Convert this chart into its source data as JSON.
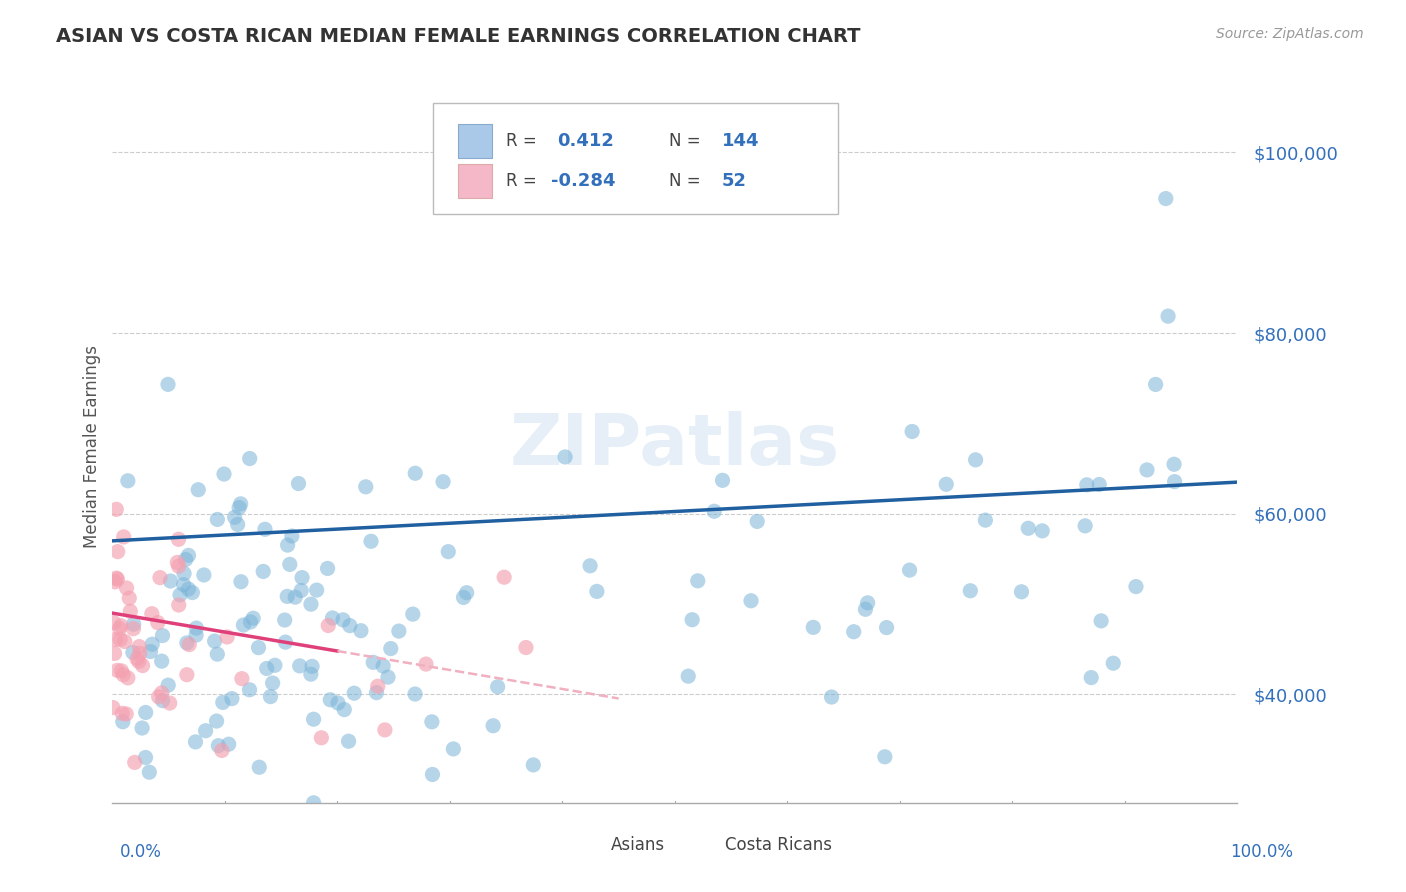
{
  "title": "ASIAN VS COSTA RICAN MEDIAN FEMALE EARNINGS CORRELATION CHART",
  "source_text": "Source: ZipAtlas.com",
  "ylabel": "Median Female Earnings",
  "yticks": [
    40000,
    60000,
    80000,
    100000
  ],
  "ytick_labels": [
    "$40,000",
    "$60,000",
    "$80,000",
    "$100,000"
  ],
  "asian_color": "#7ab4d8",
  "asian_edge_color": "#7ab4d8",
  "costa_rican_color": "#f4a0b0",
  "costa_rican_edge_color": "#f4a0b0",
  "trend_asian_color": "#2060a0",
  "trend_cr_color": "#e0407a",
  "trend_cr_dashed_color": "#f0b0c0",
  "R_asian": 0.412,
  "N_asian": 144,
  "R_cr": -0.284,
  "N_cr": 52,
  "background_color": "#ffffff",
  "grid_color": "#cccccc",
  "title_color": "#333333",
  "axis_label_color": "#555555",
  "watermark_color": "#c8dcee",
  "legend_label_asian": "Asians",
  "legend_label_cr": "Costa Ricans",
  "xmin": 0.0,
  "xmax": 1.0,
  "ymin": 28000,
  "ymax": 107000,
  "trend_asian_y0": 57000,
  "trend_asian_y1": 63500,
  "trend_cr_y0": 49000,
  "trend_cr_y1": 28000
}
